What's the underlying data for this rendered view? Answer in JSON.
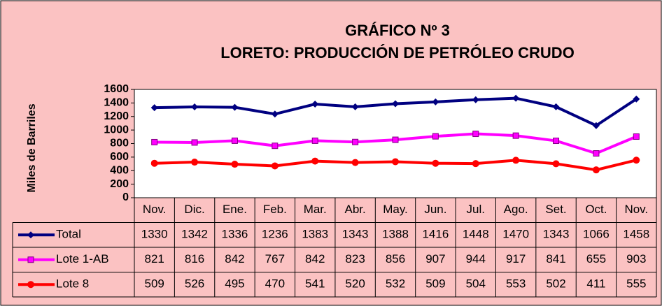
{
  "chart_data": {
    "type": "line",
    "title": "GRÁFICO Nº 3",
    "subtitle": "LORETO: PRODUCCIÓN DE PETRÓLEO CRUDO",
    "y_label": "Miles de Barriles",
    "categories": [
      "Nov.",
      "Dic.",
      "Ene.",
      "Feb.",
      "Mar.",
      "Abr.",
      "May.",
      "Jun.",
      "Jul.",
      "Ago.",
      "Set.",
      "Oct.",
      "Nov."
    ],
    "series": [
      {
        "name": "Total",
        "color": "#000080",
        "marker": "diamond",
        "values": [
          1330,
          1342,
          1336,
          1236,
          1383,
          1343,
          1388,
          1416,
          1448,
          1470,
          1343,
          1066,
          1458
        ]
      },
      {
        "name": "Lote 1-AB",
        "color": "#ff00ff",
        "marker": "square",
        "values": [
          821,
          816,
          842,
          767,
          842,
          823,
          856,
          907,
          944,
          917,
          841,
          655,
          903
        ]
      },
      {
        "name": "Lote 8",
        "color": "#ff0000",
        "marker": "circle",
        "values": [
          509,
          526,
          495,
          470,
          541,
          520,
          532,
          509,
          504,
          553,
          502,
          411,
          555
        ]
      }
    ],
    "ylim": [
      0,
      1600
    ],
    "yticks": [
      0,
      200,
      400,
      600,
      800,
      1000,
      1200,
      1400,
      1600
    ],
    "grid": false
  }
}
